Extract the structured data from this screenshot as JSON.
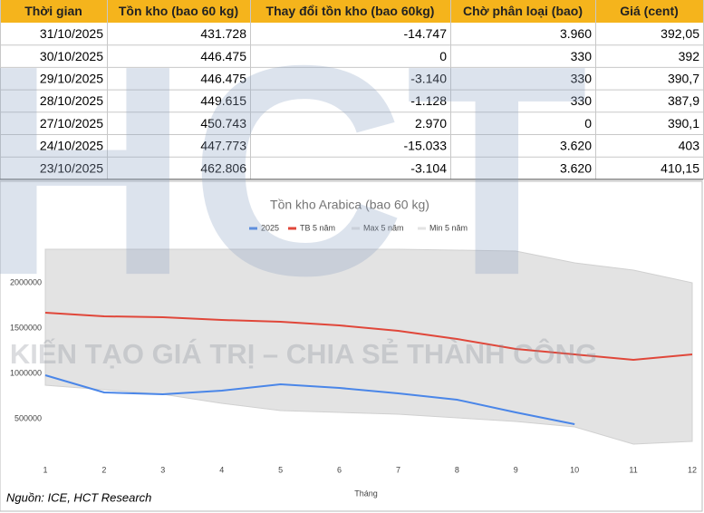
{
  "table": {
    "header": [
      "Thời gian",
      "Tồn kho (bao 60 kg)",
      "Thay đổi tồn kho (bao 60kg)",
      "Chờ phân loại (bao)",
      "Giá (cent)"
    ],
    "rows": [
      [
        "31/10/2025",
        "431.728",
        "-14.747",
        "3.960",
        "392,05"
      ],
      [
        "30/10/2025",
        "446.475",
        "0",
        "330",
        "392"
      ],
      [
        "29/10/2025",
        "446.475",
        "-3.140",
        "330",
        "390,7"
      ],
      [
        "28/10/2025",
        "449.615",
        "-1.128",
        "330",
        "387,9"
      ],
      [
        "27/10/2025",
        "450.743",
        "2.970",
        "0",
        "390,1"
      ],
      [
        "24/10/2025",
        "447.773",
        "-15.033",
        "3.620",
        "403"
      ],
      [
        "23/10/2025",
        "462.806",
        "-3.104",
        "3.620",
        "410,15"
      ]
    ]
  },
  "chart_data": {
    "type": "line",
    "title": "Tồn kho Arabica (bao 60 kg)",
    "x_label": "Tháng",
    "x": [
      1,
      2,
      3,
      4,
      5,
      6,
      7,
      8,
      9,
      10,
      11,
      12
    ],
    "xlim": [
      1,
      12
    ],
    "xticks": [
      1,
      2,
      3,
      4,
      5,
      6,
      7,
      8,
      9,
      10,
      11,
      12
    ],
    "ylim": [
      0,
      2500000
    ],
    "yticks": [
      500000,
      1000000,
      1500000,
      2000000
    ],
    "series": [
      {
        "name": "2025",
        "color": "#4a86e8",
        "values": [
          980000,
          790000,
          770000,
          810000,
          880000,
          840000,
          780000,
          710000,
          570000,
          440000,
          null,
          null
        ]
      },
      {
        "name": "TB 5 năm",
        "color": "#e0473a",
        "values": [
          1670000,
          1630000,
          1620000,
          1590000,
          1570000,
          1530000,
          1470000,
          1380000,
          1270000,
          1210000,
          1150000,
          1210000
        ]
      },
      {
        "name": "Max 5 năm",
        "color": "#e3e3e3",
        "values": [
          2370000,
          2370000,
          2370000,
          2370000,
          2370000,
          2370000,
          2370000,
          2360000,
          2350000,
          2220000,
          2140000,
          2000000
        ]
      },
      {
        "name": "Min 5 năm",
        "color": "#e3e3e3",
        "values": [
          870000,
          820000,
          770000,
          670000,
          590000,
          570000,
          550000,
          510000,
          470000,
          410000,
          220000,
          250000
        ]
      }
    ]
  },
  "source": "Nguồn: ICE, HCT Research",
  "watermark": {
    "logo": "HCT",
    "slogan": "KIẾN TẠO GIÁ TRỊ – CHIA SẺ THÀNH CÔNG"
  }
}
